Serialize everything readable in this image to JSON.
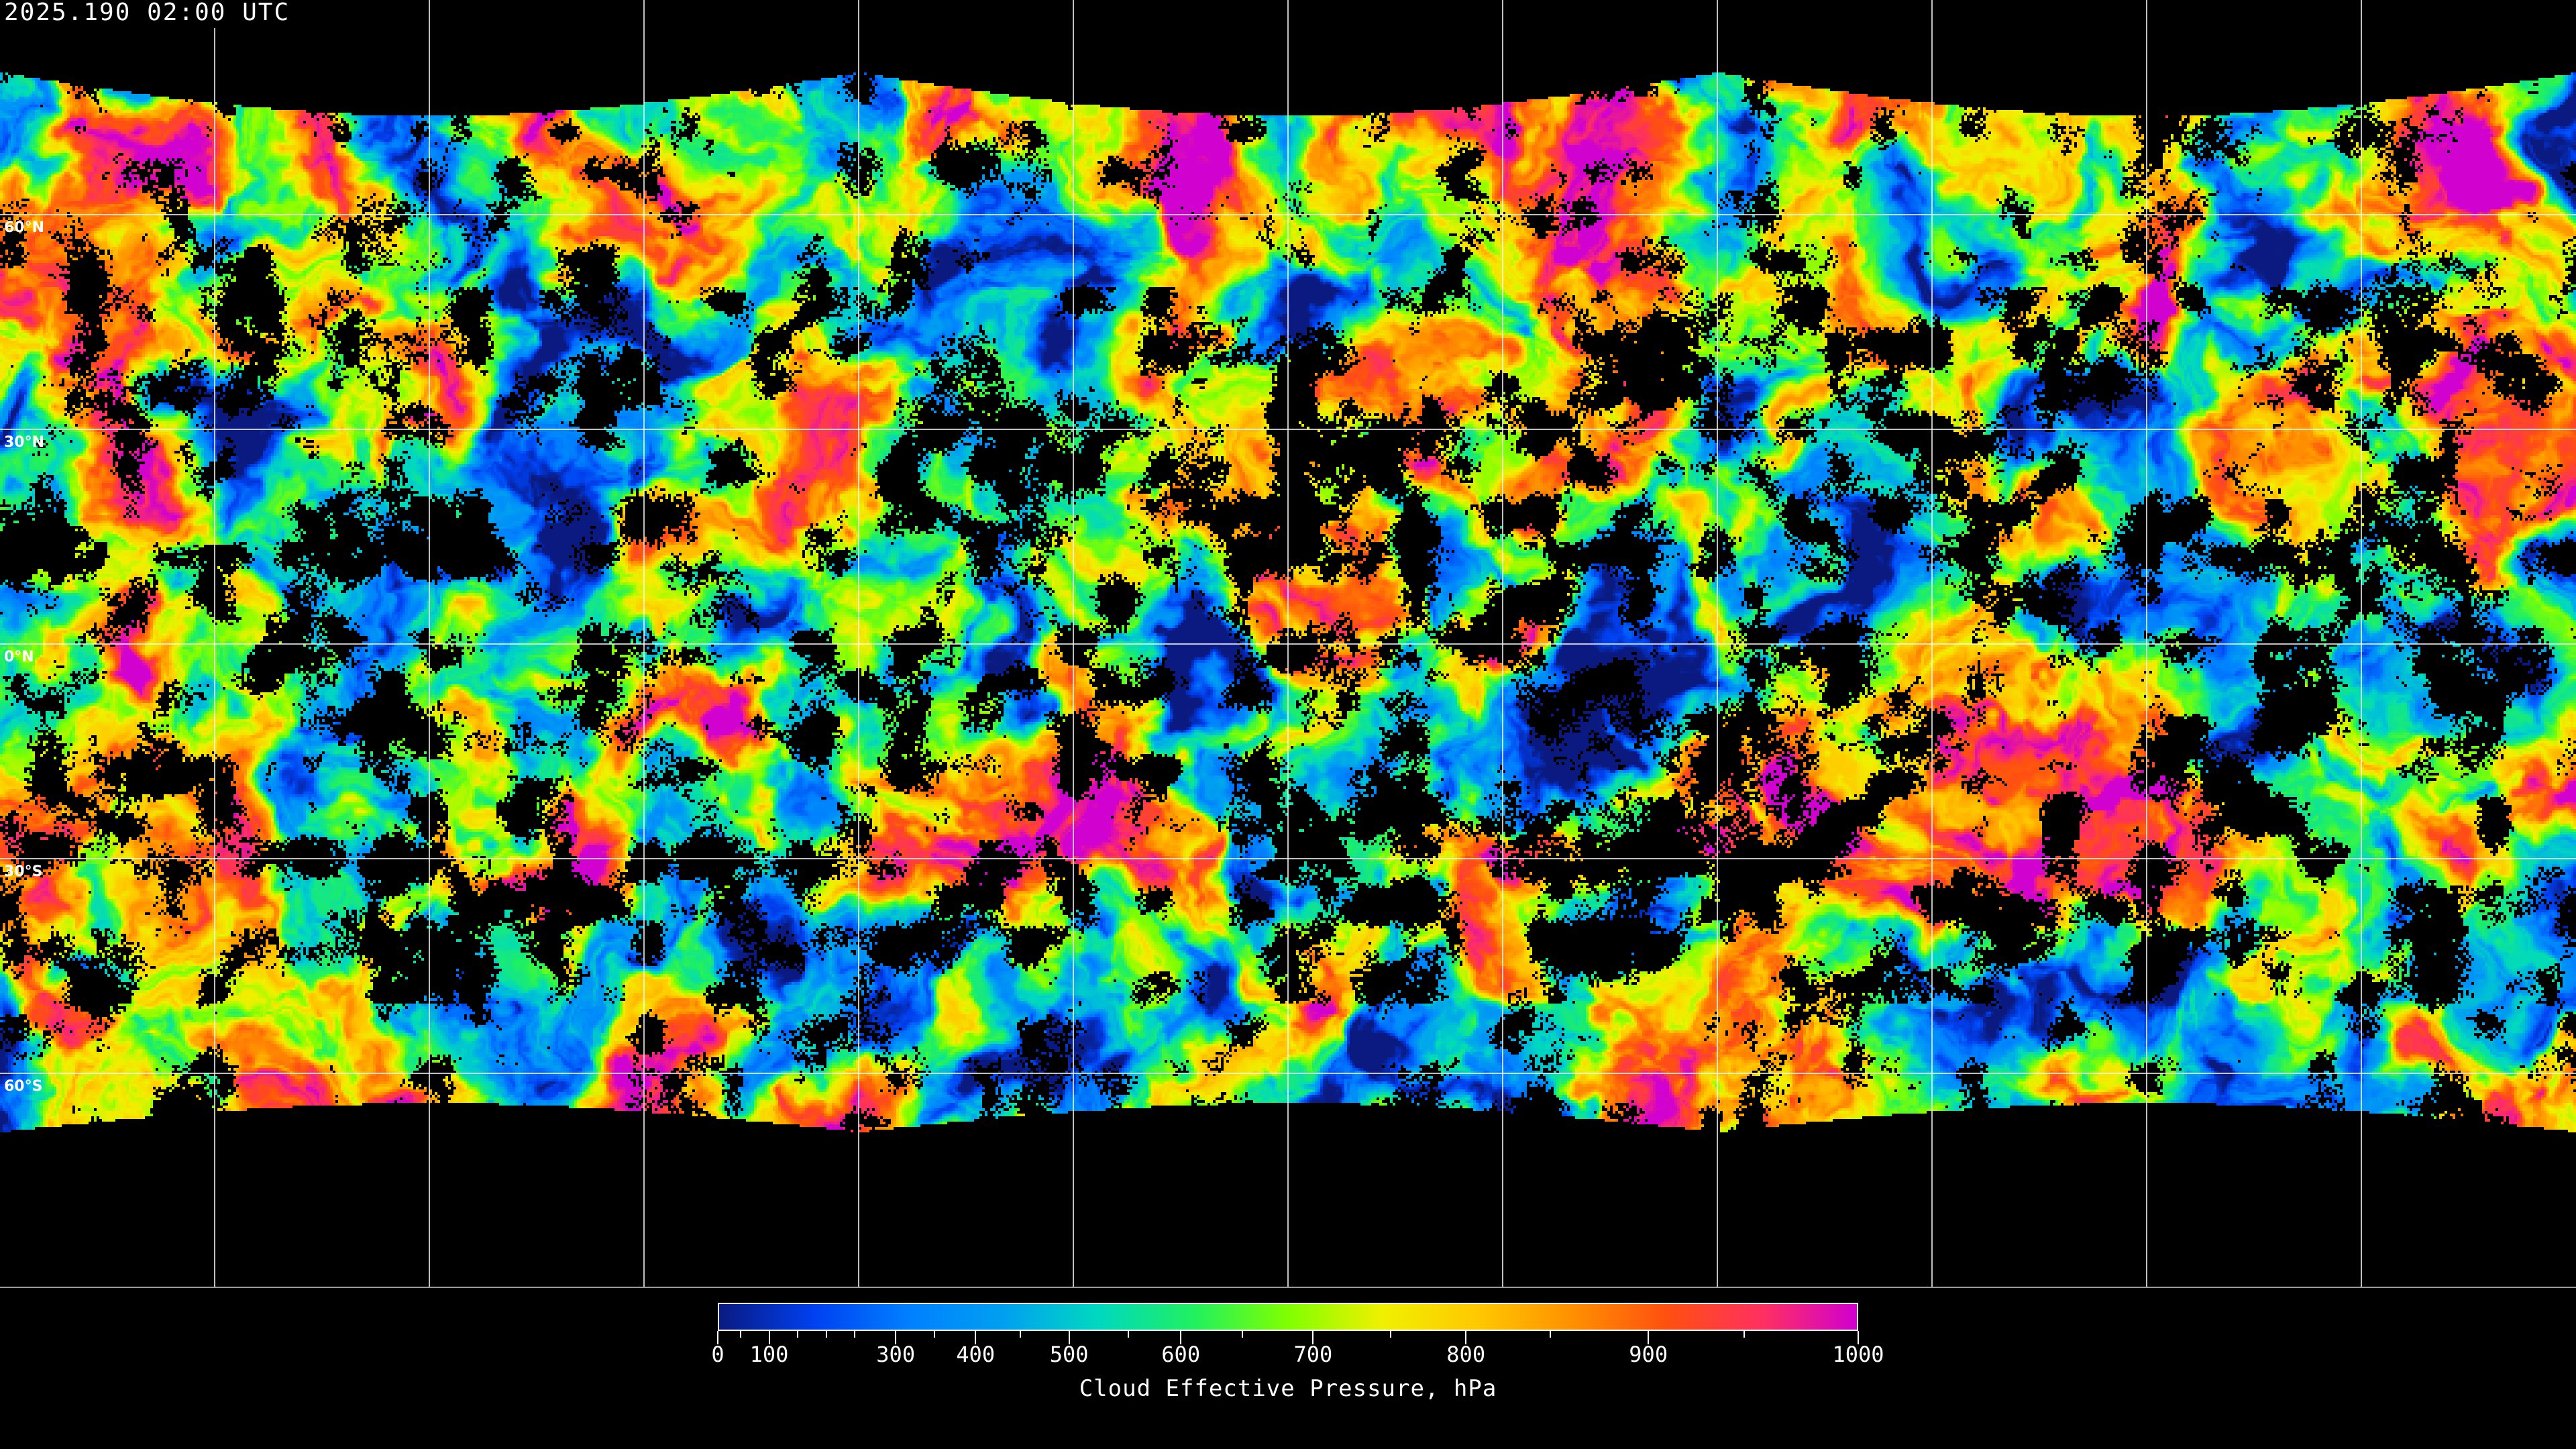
{
  "header": {
    "timestamp": "2025.190 02:00 UTC"
  },
  "map": {
    "projection": "equirectangular",
    "grid_spacing_deg": 30,
    "lat_labels": [
      "60°N",
      "30°N",
      "0°N",
      "30°S",
      "60°S"
    ],
    "no_data_color": "#000000",
    "gridline_color": "#ffffff"
  },
  "colorbar": {
    "title": "Cloud Effective Pressure, hPa",
    "tick_labels": [
      "0",
      "100",
      "300",
      "400",
      "500",
      "600",
      "700",
      "800",
      "900",
      "1000"
    ],
    "range": [
      0,
      1000
    ],
    "colormap": [
      "#0a1a80",
      "#0040f0",
      "#0080ff",
      "#00a0f0",
      "#00d8c0",
      "#20f060",
      "#80ff00",
      "#f0f000",
      "#ffc800",
      "#ff9000",
      "#ff5010",
      "#ff3060",
      "#d000d0"
    ]
  }
}
